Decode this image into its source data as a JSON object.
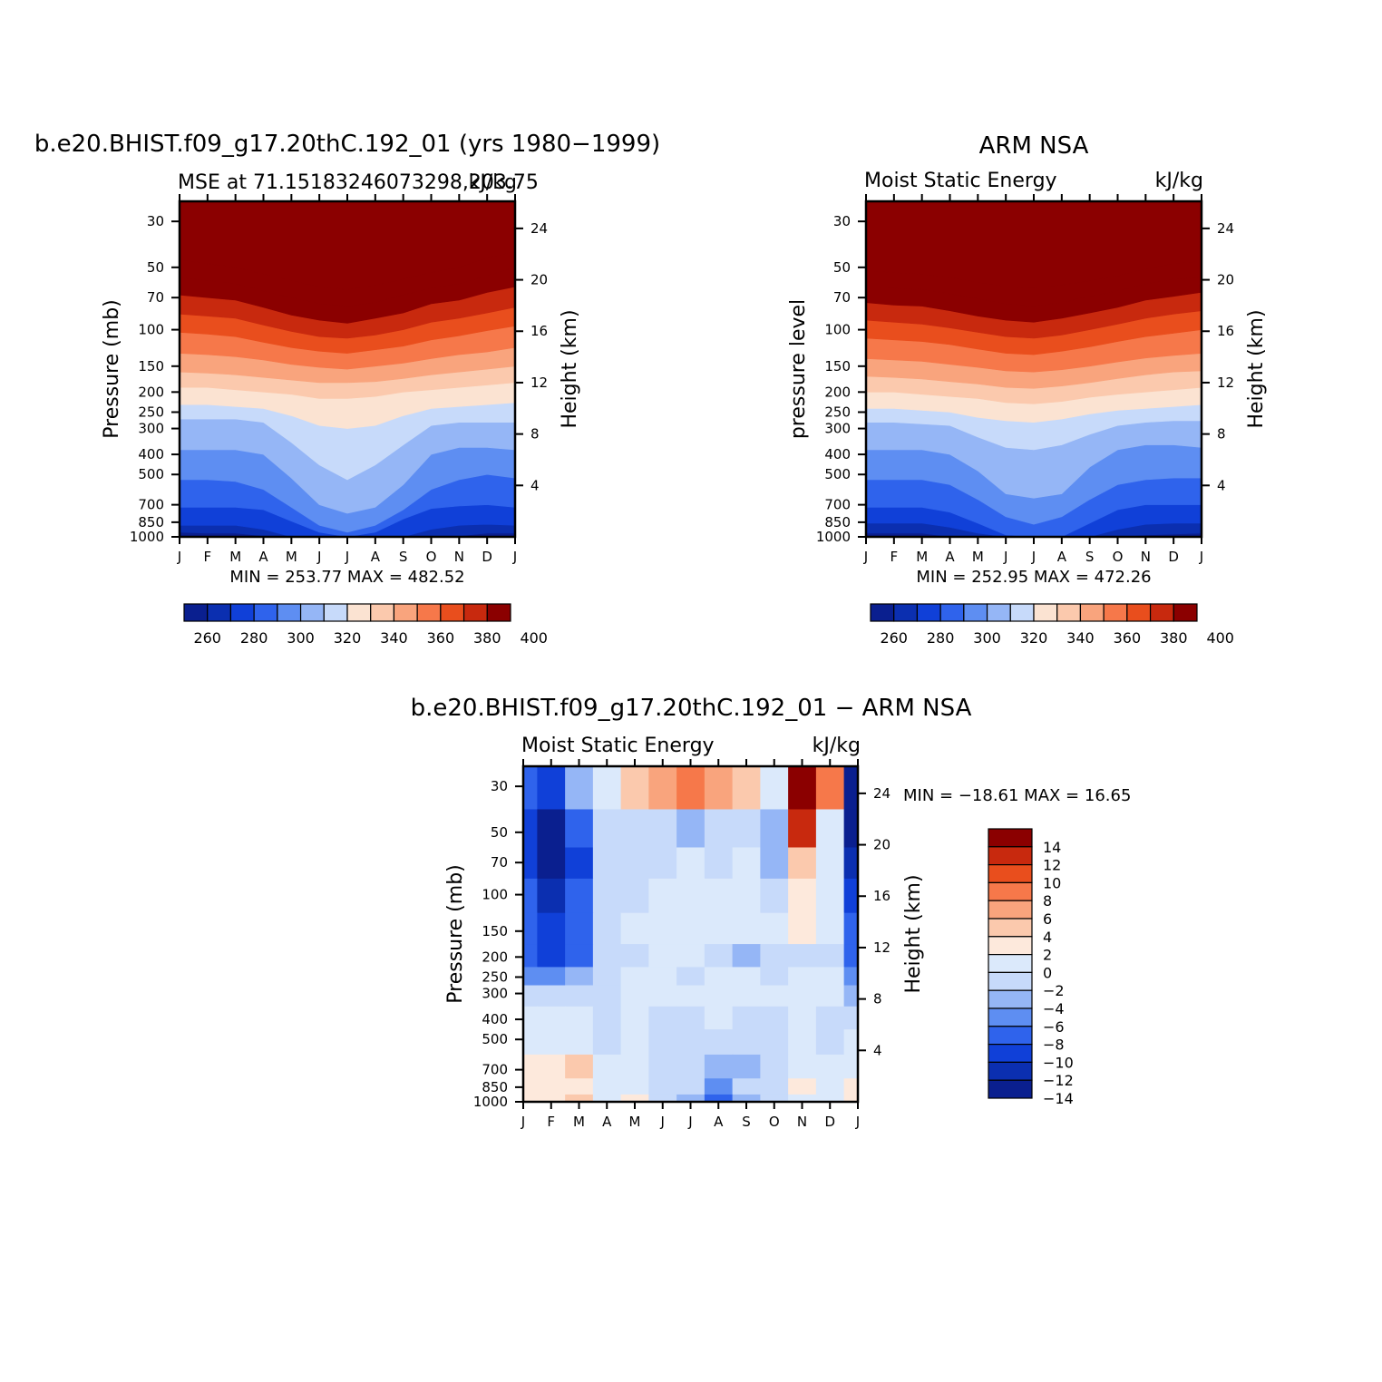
{
  "figure_title": "",
  "colors": {
    "model_obs_palette": [
      "#0a1f8f",
      "#0b2fb0",
      "#1040d8",
      "#2f63ec",
      "#5e8ef2",
      "#95b6f6",
      "#c7dafa",
      "#fbe3d2",
      "#fbc9ad",
      "#f9a47d",
      "#f6784a",
      "#e94e1d",
      "#c8290e",
      "#8b0000"
    ],
    "diff_palette": [
      "#0a1f8f",
      "#0b2fb0",
      "#1040d8",
      "#2f63ec",
      "#5e8ef2",
      "#95b6f6",
      "#c7dafa",
      "#dbe9fb",
      "#fde9dc",
      "#fbc9ad",
      "#f9a47d",
      "#f6784a",
      "#e94e1d",
      "#c8290e",
      "#8b0000"
    ]
  },
  "chart_data": [
    {
      "type": "heatmap",
      "title": "b.e20.BHIST.f09_g17.20thC.192_01 (yrs 1980−1999)",
      "left_label": "MSE at 71.15183246073298,203.75",
      "right_label": "kJ/kg",
      "ylabel": "Pressure (mb)",
      "ylabel_right": "Height (km)",
      "x_ticks": [
        "J",
        "F",
        "M",
        "A",
        "M",
        "J",
        "J",
        "A",
        "S",
        "O",
        "N",
        "D",
        "J"
      ],
      "y_ticks": [
        "30",
        "50",
        "70",
        "100",
        "150",
        "200",
        "250",
        "300",
        "400",
        "500",
        "700",
        "850",
        "1000"
      ],
      "y_right_ticks": [
        "24",
        "20",
        "16",
        "12",
        "8",
        "4"
      ],
      "min_max": "MIN = 253.77 MAX = 482.52",
      "colorbar_labels": [
        "260",
        "280",
        "300",
        "320",
        "340",
        "360",
        "380",
        "400"
      ],
      "contour_levels": [
        260,
        270,
        280,
        290,
        300,
        310,
        320,
        330,
        340,
        350,
        360,
        370,
        380,
        390,
        400
      ],
      "approx_level_pressure_mb": {
        "months": [
          "J",
          "F",
          "M",
          "A",
          "M",
          "J",
          "J",
          "A",
          "S",
          "O",
          "N",
          "D",
          "J"
        ],
        "260": [
          950,
          960,
          960,
          990,
          1000,
          1000,
          1000,
          1000,
          1000,
          1000,
          990,
          960,
          960
        ],
        "270": [
          880,
          880,
          880,
          920,
          1000,
          1000,
          1000,
          1000,
          1000,
          920,
          880,
          870,
          880
        ],
        "280": [
          720,
          720,
          720,
          740,
          840,
          950,
          1000,
          950,
          820,
          730,
          710,
          700,
          720
        ],
        "290": [
          530,
          530,
          540,
          590,
          720,
          880,
          950,
          880,
          740,
          590,
          530,
          500,
          520
        ],
        "300": [
          380,
          380,
          380,
          400,
          520,
          700,
          770,
          720,
          560,
          400,
          370,
          370,
          380
        ],
        "310": [
          270,
          270,
          270,
          280,
          350,
          450,
          530,
          450,
          360,
          290,
          280,
          280,
          280
        ],
        "320": [
          230,
          230,
          235,
          240,
          260,
          290,
          300,
          290,
          260,
          240,
          235,
          230,
          225
        ],
        "330": [
          190,
          190,
          195,
          200,
          205,
          215,
          215,
          210,
          200,
          195,
          190,
          185,
          180
        ],
        "340": [
          160,
          162,
          165,
          170,
          175,
          180,
          180,
          178,
          172,
          165,
          160,
          155,
          150
        ],
        "350": [
          130,
          132,
          135,
          140,
          147,
          152,
          155,
          150,
          145,
          138,
          132,
          128,
          122
        ],
        "360": [
          103,
          105,
          108,
          115,
          122,
          127,
          130,
          125,
          120,
          112,
          107,
          101,
          96
        ],
        "370": [
          84,
          86,
          88,
          95,
          102,
          108,
          110,
          106,
          100,
          92,
          88,
          83,
          78
        ],
        "380": [
          68,
          70,
          72,
          78,
          85,
          90,
          93,
          88,
          83,
          75,
          72,
          66,
          62
        ],
        "390": [
          56,
          58,
          60,
          65,
          70,
          75,
          77,
          74,
          68,
          63,
          60,
          55,
          50
        ],
        "400": [
          46,
          48,
          50,
          54,
          58,
          62,
          64,
          61,
          57,
          53,
          50,
          45,
          42
        ]
      }
    },
    {
      "type": "heatmap",
      "title": "ARM NSA",
      "left_label": "Moist Static Energy",
      "right_label": "kJ/kg",
      "ylabel": "pressure level",
      "ylabel_right": "Height (km)",
      "x_ticks": [
        "J",
        "F",
        "M",
        "A",
        "M",
        "J",
        "J",
        "A",
        "S",
        "O",
        "N",
        "D",
        "J"
      ],
      "y_ticks": [
        "30",
        "50",
        "70",
        "100",
        "150",
        "200",
        "250",
        "300",
        "400",
        "500",
        "700",
        "850",
        "1000"
      ],
      "y_right_ticks": [
        "24",
        "20",
        "16",
        "12",
        "8",
        "4"
      ],
      "min_max": "MIN = 252.95 MAX = 472.26",
      "colorbar_labels": [
        "260",
        "280",
        "300",
        "320",
        "340",
        "360",
        "380",
        "400"
      ],
      "contour_levels": [
        260,
        270,
        280,
        290,
        300,
        310,
        320,
        330,
        340,
        350,
        360,
        370,
        380,
        390,
        400
      ],
      "approx_level_pressure_mb": {
        "months": [
          "J",
          "F",
          "M",
          "A",
          "M",
          "J",
          "J",
          "A",
          "S",
          "O",
          "N",
          "D",
          "J"
        ],
        "260": [
          960,
          960,
          960,
          1000,
          1000,
          1000,
          1000,
          1000,
          1000,
          1000,
          980,
          970,
          960
        ],
        "270": [
          860,
          860,
          860,
          900,
          960,
          1000,
          1000,
          1000,
          1000,
          920,
          870,
          860,
          860
        ],
        "280": [
          720,
          720,
          720,
          760,
          860,
          980,
          1000,
          1000,
          860,
          740,
          700,
          700,
          700
        ],
        "290": [
          530,
          530,
          530,
          560,
          660,
          800,
          870,
          800,
          660,
          560,
          530,
          520,
          520
        ],
        "300": [
          380,
          380,
          380,
          400,
          480,
          620,
          650,
          620,
          460,
          380,
          360,
          360,
          370
        ],
        "310": [
          280,
          280,
          285,
          290,
          330,
          370,
          380,
          360,
          320,
          290,
          280,
          275,
          275
        ],
        "320": [
          240,
          240,
          245,
          250,
          265,
          275,
          280,
          270,
          255,
          245,
          240,
          235,
          230
        ],
        "330": [
          200,
          200,
          205,
          210,
          215,
          225,
          228,
          222,
          212,
          205,
          200,
          195,
          190
        ],
        "340": [
          168,
          170,
          173,
          178,
          183,
          190,
          192,
          187,
          180,
          172,
          165,
          160,
          158
        ],
        "350": [
          138,
          140,
          142,
          147,
          152,
          158,
          160,
          156,
          150,
          143,
          137,
          133,
          130
        ],
        "360": [
          110,
          112,
          114,
          118,
          124,
          130,
          132,
          127,
          121,
          114,
          108,
          104,
          100
        ],
        "370": [
          90,
          92,
          94,
          98,
          103,
          108,
          110,
          106,
          100,
          94,
          88,
          84,
          81
        ],
        "380": [
          74,
          76,
          77,
          81,
          86,
          90,
          92,
          88,
          83,
          78,
          72,
          69,
          66
        ],
        "390": [
          62,
          63,
          64,
          67,
          71,
          75,
          77,
          74,
          69,
          65,
          60,
          57,
          56
        ],
        "400": [
          52,
          53,
          54,
          56,
          59,
          62,
          63,
          61,
          58,
          55,
          51,
          48,
          47
        ]
      }
    },
    {
      "type": "heatmap",
      "title": "b.e20.BHIST.f09_g17.20thC.192_01 − ARM NSA",
      "left_label": "Moist Static Energy",
      "right_label": "kJ/kg",
      "ylabel": "Pressure (mb)",
      "ylabel_right": "Height (km)",
      "x_ticks": [
        "J",
        "F",
        "M",
        "A",
        "M",
        "J",
        "J",
        "A",
        "S",
        "O",
        "N",
        "D",
        "J"
      ],
      "y_ticks": [
        "30",
        "50",
        "70",
        "100",
        "150",
        "200",
        "250",
        "300",
        "400",
        "500",
        "700",
        "850",
        "1000"
      ],
      "y_right_ticks": [
        "24",
        "20",
        "16",
        "12",
        "8",
        "4"
      ],
      "min_max": "MIN = −18.61 MAX =  16.65",
      "colorbar_labels": [
        "14",
        "12",
        "10",
        "8",
        "6",
        "4",
        "2",
        "0",
        "−2",
        "−4",
        "−6",
        "−8",
        "−10",
        "−12",
        "−14"
      ],
      "contour_levels": [
        -14,
        -12,
        -10,
        -8,
        -6,
        -4,
        -2,
        0,
        2,
        4,
        6,
        8,
        10,
        12,
        14
      ],
      "approx_grid": {
        "months": [
          "J",
          "F",
          "M",
          "A",
          "M",
          "J",
          "J",
          "A",
          "S",
          "O",
          "N",
          "D",
          "J"
        ],
        "pressure_mb": [
          30,
          50,
          70,
          100,
          150,
          200,
          250,
          300,
          400,
          500,
          700,
          850,
          1000
        ],
        "values": [
          [
            -9,
            -11,
            -6,
            -1,
            3,
            4,
            6,
            4,
            2,
            -1,
            16,
            6,
            -16
          ],
          [
            -12,
            -15,
            -10,
            -3,
            -4,
            -4,
            -5,
            -4,
            -3,
            -6,
            10,
            -1,
            -15
          ],
          [
            -12,
            -15,
            -11,
            -3,
            -3,
            -3,
            -2,
            -3,
            -2,
            -5,
            2,
            -2,
            -14
          ],
          [
            -10,
            -13,
            -10,
            -3,
            -3,
            -2,
            -1,
            -2,
            -2,
            -3,
            1,
            -2,
            -12
          ],
          [
            -9,
            -11,
            -9,
            -3,
            -2,
            -1,
            -1,
            -1,
            -2,
            -2,
            1,
            -2,
            -10
          ],
          [
            -9,
            -11,
            -9,
            -4,
            -3,
            -2,
            -2,
            -3,
            -5,
            -3,
            -3,
            -3,
            -9
          ],
          [
            -7,
            -7,
            -6,
            -4,
            -2,
            -1,
            -3,
            -1,
            -2,
            -3,
            -2,
            -2,
            -7
          ],
          [
            -4,
            -3,
            -4,
            -3,
            -2,
            -1,
            -2,
            -1,
            -2,
            -2,
            -2,
            -2,
            -5
          ],
          [
            -2,
            -2,
            -1,
            -3,
            -2,
            -3,
            -3,
            -2,
            -3,
            -3,
            -2,
            -3,
            -3
          ],
          [
            -2,
            -2,
            -1,
            -3,
            -2,
            -3,
            -3,
            -4,
            -4,
            -3,
            -2,
            -3,
            -2
          ],
          [
            0,
            1,
            2,
            -2,
            -2,
            -3,
            -4,
            -6,
            -5,
            -3,
            -1,
            -2,
            -1
          ],
          [
            1,
            1,
            1,
            -2,
            -2,
            -4,
            -4,
            -7,
            -4,
            -3,
            0,
            -2,
            0
          ],
          [
            1,
            1,
            2,
            -2,
            0,
            -3,
            -5,
            -9,
            -6,
            -3,
            -1,
            -2,
            1
          ]
        ]
      }
    }
  ]
}
